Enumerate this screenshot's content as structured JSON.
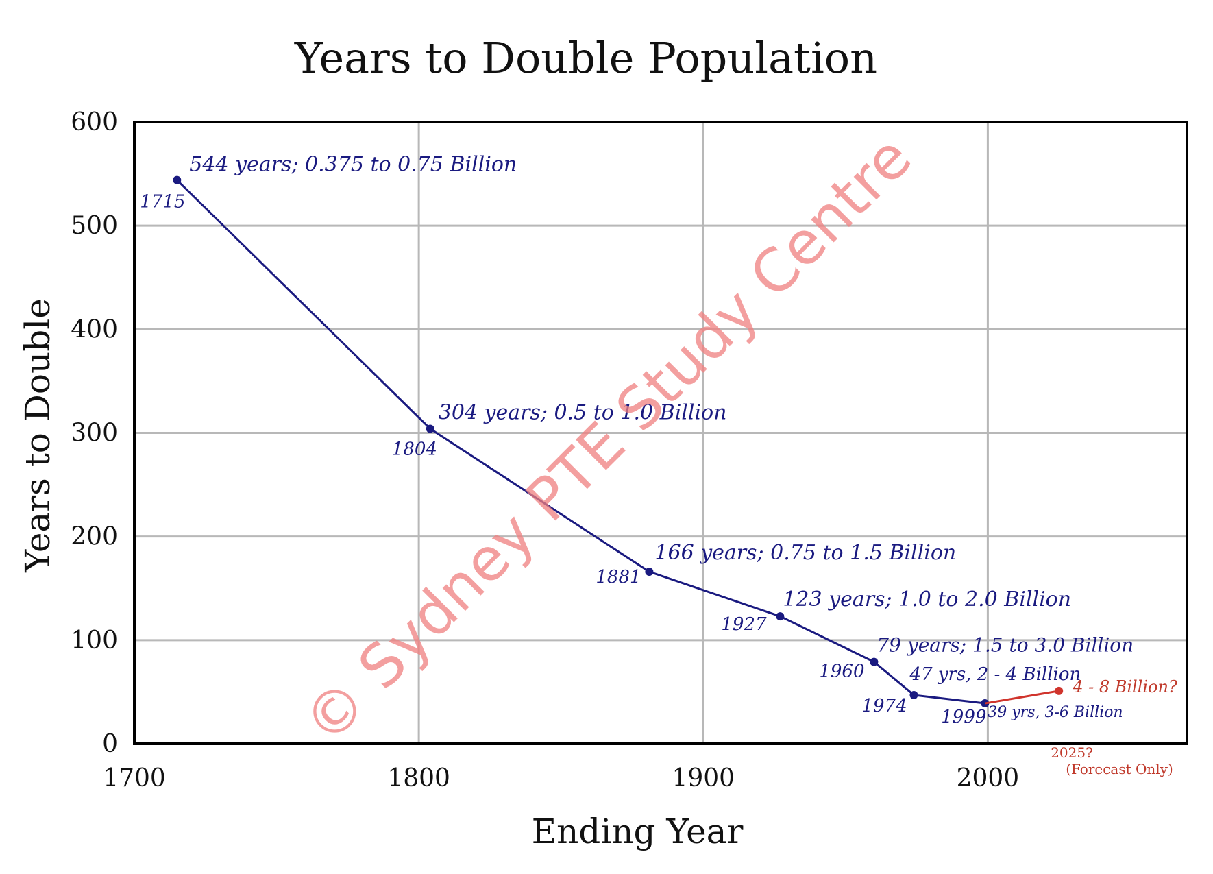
{
  "chart_data": {
    "type": "line",
    "title": "Years to Double Population",
    "xlabel": "Ending Year",
    "ylabel": "Years to Double",
    "xlim": [
      1700,
      2070
    ],
    "ylim": [
      0,
      600
    ],
    "x_ticks": [
      1700,
      1800,
      1900,
      2000
    ],
    "y_ticks": [
      0,
      100,
      200,
      300,
      400,
      500,
      600
    ],
    "grid": true,
    "series": [
      {
        "color": "#1a1a80",
        "points": [
          {
            "x": 1715,
            "y": 544,
            "year_label": "1715",
            "note": "544 years; 0.375 to 0.75 Billion"
          },
          {
            "x": 1804,
            "y": 304,
            "year_label": "1804",
            "note": "304 years; 0.5 to 1.0 Billion"
          },
          {
            "x": 1881,
            "y": 166,
            "year_label": "1881",
            "note": "166 years; 0.75 to 1.5 Billion"
          },
          {
            "x": 1927,
            "y": 123,
            "year_label": "1927",
            "note": "123 years; 1.0 to 2.0 Billion"
          },
          {
            "x": 1960,
            "y": 79,
            "year_label": "1960",
            "note": "79 years; 1.5 to 3.0 Billion"
          },
          {
            "x": 1974,
            "y": 47,
            "year_label": "1974",
            "note": "47 yrs, 2 - 4 Billion"
          },
          {
            "x": 1999,
            "y": 39,
            "year_label": "1999",
            "note": "39 yrs, 3-6 Billion"
          }
        ]
      },
      {
        "color": "#d0342c",
        "points": [
          {
            "x": 1999,
            "y": 39
          },
          {
            "x": 2025,
            "y": 51,
            "year_label": "2025?",
            "note": "4 - 8 Billion?"
          }
        ],
        "footnote": "(Forecast Only)"
      }
    ]
  },
  "watermark": {
    "text": "© Sydney PTE Study Centre",
    "color": "#f08080"
  }
}
